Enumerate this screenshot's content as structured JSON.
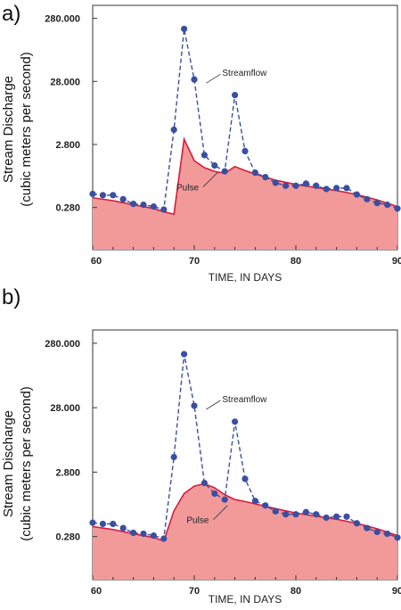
{
  "chart_data": [
    {
      "panel_label": "a)",
      "type": "line",
      "xlabel": "TIME, IN DAYS",
      "ylabel_line1": "Stream Discharge",
      "ylabel_line2": "(cubic meters per second)",
      "yscale": "log",
      "xlim": [
        60,
        90
      ],
      "ylim": [
        0.06,
        450
      ],
      "x_ticks": [
        60,
        70,
        80,
        90
      ],
      "x_tick_labels": [
        "60",
        "70",
        "80",
        "90"
      ],
      "y_ticks": [
        0.28,
        2.8,
        28,
        280
      ],
      "y_tick_labels": [
        "0.280",
        "2.800",
        "28.000",
        "280.000"
      ],
      "series": [
        {
          "name": "Streamflow",
          "style": "dashed-markers",
          "color": "#3a4fa0",
          "x": [
            60,
            61,
            62,
            63,
            64,
            65,
            66,
            67,
            68,
            69,
            70,
            71,
            72,
            73,
            74,
            75,
            76,
            77,
            78,
            79,
            80,
            81,
            82,
            83,
            84,
            85,
            86,
            87,
            88,
            89,
            90
          ],
          "y": [
            0.46,
            0.44,
            0.44,
            0.38,
            0.32,
            0.31,
            0.29,
            0.26,
            4.8,
            190,
            30,
            1.9,
            1.3,
            1.05,
            17,
            2.2,
            1.0,
            0.85,
            0.69,
            0.62,
            0.62,
            0.67,
            0.62,
            0.55,
            0.57,
            0.57,
            0.45,
            0.38,
            0.33,
            0.31,
            0.27
          ]
        },
        {
          "name": "Pulse",
          "style": "filled-area",
          "color": "#f29a9a",
          "line_color": "#d81b3c",
          "x": [
            60,
            62,
            64,
            66,
            67,
            68,
            69,
            70,
            71,
            72,
            73,
            74,
            75,
            76,
            78,
            80,
            82,
            84,
            86,
            88,
            90
          ],
          "y": [
            0.4,
            0.36,
            0.31,
            0.27,
            0.24,
            0.22,
            3.4,
            1.55,
            1.2,
            1.05,
            0.98,
            1.25,
            1.08,
            0.95,
            0.76,
            0.65,
            0.58,
            0.52,
            0.45,
            0.37,
            0.29
          ]
        }
      ],
      "annotations": [
        {
          "text": "Streamflow",
          "points_to": [
            71,
            30
          ]
        },
        {
          "text": "Pulse",
          "points_to": [
            70,
            1.3
          ]
        }
      ]
    },
    {
      "panel_label": "b)",
      "type": "line",
      "xlabel": "TIME, IN DAYS",
      "ylabel_line1": "Stream Discharge",
      "ylabel_line2": "(cubic meters per second)",
      "yscale": "log",
      "xlim": [
        60,
        90
      ],
      "ylim": [
        0.06,
        450
      ],
      "x_ticks": [
        60,
        70,
        80,
        90
      ],
      "x_tick_labels": [
        "60",
        "70",
        "80",
        "90"
      ],
      "y_ticks": [
        0.28,
        2.8,
        28,
        280
      ],
      "y_tick_labels": [
        "0.280",
        "2.800",
        "28.000",
        "280.000"
      ],
      "series": [
        {
          "name": "Streamflow",
          "style": "dashed-markers",
          "color": "#3a4fa0",
          "x": [
            60,
            61,
            62,
            63,
            64,
            65,
            66,
            67,
            68,
            69,
            70,
            71,
            72,
            73,
            74,
            75,
            76,
            77,
            78,
            79,
            80,
            81,
            82,
            83,
            84,
            85,
            86,
            87,
            88,
            89,
            90
          ],
          "y": [
            0.46,
            0.44,
            0.44,
            0.38,
            0.32,
            0.31,
            0.29,
            0.26,
            4.8,
            190,
            30,
            1.9,
            1.3,
            1.05,
            17,
            2.2,
            1.0,
            0.85,
            0.69,
            0.62,
            0.62,
            0.67,
            0.62,
            0.55,
            0.57,
            0.57,
            0.45,
            0.38,
            0.33,
            0.31,
            0.27
          ]
        },
        {
          "name": "Pulse",
          "style": "filled-area",
          "color": "#f29a9a",
          "line_color": "#d81b3c",
          "x": [
            60,
            62,
            64,
            66,
            67,
            68,
            69,
            70,
            71,
            72,
            73,
            74,
            75,
            76,
            78,
            80,
            82,
            84,
            86,
            88,
            90
          ],
          "y": [
            0.4,
            0.36,
            0.31,
            0.27,
            0.24,
            0.7,
            1.3,
            1.7,
            1.85,
            1.6,
            1.25,
            1.05,
            0.98,
            0.9,
            0.76,
            0.65,
            0.58,
            0.52,
            0.45,
            0.37,
            0.29
          ]
        }
      ],
      "annotations": [
        {
          "text": "Streamflow",
          "points_to": [
            71,
            30
          ]
        },
        {
          "text": "Pulse",
          "points_to": [
            71,
            1.1
          ]
        }
      ]
    }
  ]
}
